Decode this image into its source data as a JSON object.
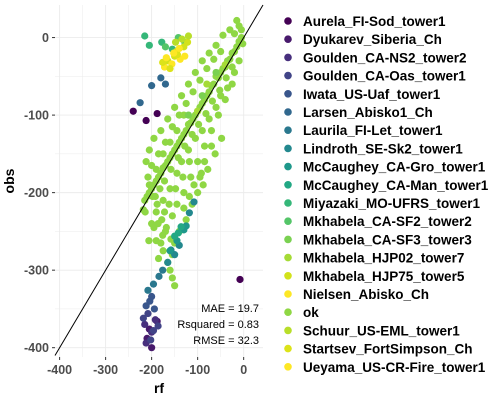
{
  "chart_data": {
    "type": "scatter",
    "xlabel": "rf",
    "ylabel": "obs",
    "xlim": [
      -410,
      42
    ],
    "ylim": [
      -412,
      42
    ],
    "x_ticks": [
      -400,
      -300,
      -200,
      -100,
      0
    ],
    "x_tick_labels": [
      "-400",
      "-300",
      "-200",
      "-100",
      "0"
    ],
    "y_ticks": [
      -400,
      -300,
      -200,
      -100,
      0
    ],
    "y_tick_labels": [
      "-400",
      "-300",
      "-200",
      "-100",
      "0"
    ],
    "grid": true,
    "reference_line": "1:1",
    "legend_position": "right",
    "annotations": [
      "MAE = 19.7",
      "Rsquared = 0.83",
      "RMSE = 32.3"
    ],
    "series": [
      {
        "name": "Aurela_FI-Sod_tower1",
        "color": "#440154",
        "points": [
          [
            -240,
            -95
          ],
          [
            -212,
            -107
          ],
          [
            -188,
            -98
          ],
          [
            -8,
            -312
          ]
        ]
      },
      {
        "name": "Dyukarev_Siberia_Ch",
        "color": "#481A6C",
        "points": [
          [
            -210,
            -388
          ],
          [
            -200,
            -400
          ],
          [
            -205,
            -376
          ],
          [
            -188,
            -366
          ]
        ]
      },
      {
        "name": "Goulden_CA-NS2_tower2",
        "color": "#472F7D",
        "points": [
          [
            -215,
            -370
          ],
          [
            -200,
            -380
          ],
          [
            -192,
            -364
          ],
          [
            -212,
            -394
          ]
        ]
      },
      {
        "name": "Goulden_CA-Oas_tower1",
        "color": "#414487",
        "points": [
          [
            -218,
            -362
          ],
          [
            -208,
            -356
          ],
          [
            -196,
            -378
          ],
          [
            -202,
            -390
          ],
          [
            -186,
            -372
          ]
        ]
      },
      {
        "name": "Iwata_US-Uaf_tower1",
        "color": "#39568C",
        "points": [
          [
            -212,
            -346
          ],
          [
            -204,
            -340
          ],
          [
            -194,
            -350
          ],
          [
            -200,
            -334
          ]
        ]
      },
      {
        "name": "Larsen_Abisko1_Ch",
        "color": "#31688E",
        "points": [
          [
            -225,
            -84
          ],
          [
            -200,
            -62
          ],
          [
            -180,
            -52
          ],
          [
            -170,
            -60
          ]
        ]
      },
      {
        "name": "Laurila_FI-Let_tower1",
        "color": "#2A788E",
        "points": [
          [
            -196,
            -318
          ],
          [
            -184,
            -308
          ],
          [
            -208,
            -326
          ],
          [
            -176,
            -300
          ]
        ]
      },
      {
        "name": "Lindroth_SE-Sk2_tower1",
        "color": "#23888E",
        "points": [
          [
            -165,
            -290
          ],
          [
            -150,
            -280
          ],
          [
            -140,
            -268
          ],
          [
            -158,
            -274
          ],
          [
            -108,
            -212
          ],
          [
            -118,
            -226
          ]
        ]
      },
      {
        "name": "McCaughey_CA-Gro_tower1",
        "color": "#1F988B",
        "points": [
          [
            -160,
            -275
          ],
          [
            -145,
            -262
          ],
          [
            -130,
            -248
          ],
          [
            -125,
            -243
          ]
        ]
      },
      {
        "name": "McCaughey_CA-Man_tower1",
        "color": "#22A884",
        "points": [
          [
            -150,
            -256
          ],
          [
            -136,
            -244
          ],
          [
            -142,
            -252
          ]
        ]
      },
      {
        "name": "Miyazaki_MO-UFRS_tower1",
        "color": "#35B779",
        "points": [
          [
            -215,
            2
          ],
          [
            -205,
            -10
          ],
          [
            -155,
            -15
          ],
          [
            -178,
            -6
          ]
        ]
      },
      {
        "name": "Mkhabela_CA-SF2_tower2",
        "color": "#54C568",
        "points": [
          [
            -142,
            0
          ],
          [
            -128,
            -6
          ],
          [
            -170,
            -12
          ]
        ]
      },
      {
        "name": "Mkhabela_CA-SF3_tower3",
        "color": "#7AD151",
        "points": [
          [
            -120,
            -100
          ],
          [
            -90,
            -75
          ],
          [
            -60,
            -45
          ]
        ]
      },
      {
        "name": "Mkhabela_HJP02_tower7",
        "color": "#A5DB36",
        "points": [
          [
            -100,
            -95
          ],
          [
            -80,
            -60
          ],
          [
            -40,
            -35
          ]
        ]
      },
      {
        "name": "Mkhabela_HJP75_tower5",
        "color": "#D2E21B",
        "points": [
          [
            -165,
            -30
          ],
          [
            -150,
            -24
          ],
          [
            -146,
            -18
          ],
          [
            -130,
            -12
          ],
          [
            -122,
            -6
          ]
        ]
      },
      {
        "name": "Nielsen_Abisko_Ch",
        "color": "#FDE725",
        "points": [
          [
            -172,
            -38
          ],
          [
            -156,
            -34
          ],
          [
            -138,
            -28
          ],
          [
            -128,
            -24
          ]
        ]
      },
      {
        "name": "ok",
        "color": "#8FD744",
        "points": [
          [
            -5,
            0
          ],
          [
            -10,
            -5
          ],
          [
            -15,
            -12
          ],
          [
            -20,
            -18
          ],
          [
            -25,
            -20
          ],
          [
            -30,
            -28
          ],
          [
            -35,
            -30
          ],
          [
            -40,
            -38
          ],
          [
            -45,
            -40
          ],
          [
            -50,
            -45
          ],
          [
            -55,
            -52
          ],
          [
            -60,
            -50
          ],
          [
            -65,
            -60
          ],
          [
            -70,
            -62
          ],
          [
            -75,
            -70
          ],
          [
            -80,
            -75
          ],
          [
            -85,
            -80
          ],
          [
            -90,
            -85
          ],
          [
            -95,
            -90
          ],
          [
            -100,
            -95
          ],
          [
            -105,
            -100
          ],
          [
            -110,
            -105
          ],
          [
            -115,
            -110
          ],
          [
            -120,
            -112
          ],
          [
            -125,
            -120
          ],
          [
            -130,
            -125
          ],
          [
            -135,
            -130
          ],
          [
            -140,
            -135
          ],
          [
            -145,
            -140
          ],
          [
            -150,
            -145
          ],
          [
            -155,
            -150
          ],
          [
            -160,
            -155
          ],
          [
            -165,
            -160
          ],
          [
            -170,
            -165
          ],
          [
            -175,
            -168
          ],
          [
            -180,
            -175
          ],
          [
            -185,
            -180
          ],
          [
            -190,
            -185
          ],
          [
            -195,
            -190
          ],
          [
            -200,
            -195
          ],
          [
            -205,
            -200
          ],
          [
            -210,
            -205
          ],
          [
            -215,
            -210
          ],
          [
            -218,
            -222
          ],
          [
            -200,
            -240
          ],
          [
            -190,
            -262
          ],
          [
            -175,
            -275
          ],
          [
            -165,
            -290
          ],
          [
            -160,
            -300
          ],
          [
            -155,
            -310
          ],
          [
            -150,
            -320
          ],
          [
            -20,
            5
          ],
          [
            -30,
            10
          ],
          [
            -45,
            3
          ],
          [
            -60,
            -10
          ],
          [
            -75,
            -20
          ],
          [
            -90,
            -30
          ],
          [
            -105,
            -45
          ],
          [
            -120,
            -60
          ],
          [
            -135,
            -75
          ],
          [
            -150,
            -90
          ],
          [
            -165,
            -105
          ],
          [
            -180,
            -120
          ],
          [
            -195,
            -130
          ],
          [
            -205,
            -145
          ],
          [
            -212,
            -160
          ],
          [
            -25,
            -60
          ],
          [
            -40,
            -80
          ],
          [
            -55,
            -100
          ],
          [
            -70,
            -120
          ],
          [
            -85,
            -140
          ],
          [
            -100,
            -160
          ],
          [
            -115,
            -180
          ],
          [
            -130,
            -200
          ],
          [
            -145,
            -215
          ],
          [
            -155,
            -230
          ],
          [
            -170,
            -250
          ],
          [
            -180,
            -265
          ],
          [
            -185,
            -285
          ],
          [
            -10,
            -30
          ],
          [
            -20,
            -45
          ],
          [
            -35,
            -65
          ],
          [
            -50,
            -75
          ],
          [
            -60,
            -90
          ],
          [
            -75,
            -105
          ],
          [
            -90,
            -120
          ],
          [
            -105,
            -130
          ],
          [
            -120,
            -145
          ],
          [
            -135,
            -160
          ],
          [
            -145,
            -175
          ],
          [
            -160,
            -195
          ],
          [
            -175,
            -210
          ],
          [
            -190,
            -225
          ],
          [
            -195,
            -245
          ],
          [
            -48,
            -130
          ],
          [
            -62,
            -150
          ],
          [
            -78,
            -170
          ],
          [
            -88,
            -190
          ],
          [
            -100,
            -200
          ],
          [
            -112,
            -215
          ],
          [
            -92,
            -175
          ],
          [
            -125,
            -235
          ],
          [
            -140,
            -250
          ],
          [
            -150,
            -265
          ],
          [
            -155,
            -280
          ],
          [
            -50,
            -18
          ],
          [
            -65,
            -28
          ],
          [
            -80,
            -40
          ],
          [
            -95,
            -55
          ],
          [
            -110,
            -70
          ],
          [
            -125,
            -85
          ],
          [
            -140,
            -100
          ],
          [
            -155,
            -115
          ],
          [
            -170,
            -135
          ],
          [
            -185,
            -150
          ],
          [
            -200,
            -165
          ],
          [
            -208,
            -180
          ],
          [
            -198,
            -205
          ],
          [
            -188,
            -215
          ],
          [
            -178,
            -235
          ],
          [
            -168,
            -245
          ],
          [
            -158,
            -260
          ],
          [
            -10,
            15
          ],
          [
            -15,
            22
          ],
          [
            -5,
            10
          ],
          [
            -2,
            -8
          ],
          [
            -25,
            -38
          ],
          [
            -38,
            -52
          ],
          [
            -52,
            -68
          ],
          [
            -68,
            -82
          ],
          [
            -82,
            -98
          ],
          [
            -98,
            -112
          ],
          [
            -112,
            -125
          ],
          [
            -128,
            -140
          ],
          [
            -142,
            -155
          ],
          [
            -158,
            -170
          ],
          [
            -172,
            -185
          ],
          [
            -182,
            -195
          ],
          [
            -192,
            -205
          ],
          [
            -186,
            -240
          ],
          [
            -176,
            -255
          ],
          [
            -70,
            -140
          ],
          [
            -85,
            -160
          ],
          [
            -95,
            -180
          ],
          [
            -108,
            -190
          ],
          [
            -118,
            -205
          ],
          [
            -130,
            -220
          ],
          [
            -118,
            -160
          ],
          [
            -132,
            -180
          ],
          [
            -148,
            -195
          ],
          [
            -162,
            -215
          ],
          [
            -172,
            -225
          ],
          [
            -130,
            -100
          ],
          [
            -145,
            -120
          ],
          [
            -160,
            -135
          ],
          [
            -175,
            -150
          ],
          [
            -190,
            -170
          ],
          [
            -205,
            -190
          ],
          [
            -214,
            -225
          ],
          [
            -206,
            -262
          ]
        ]
      },
      {
        "name": "Schuur_US-EML_tower1",
        "color": "#B8DE29",
        "points": [
          [
            -148,
            -6
          ],
          [
            -134,
            -2
          ],
          [
            -120,
            2
          ]
        ]
      },
      {
        "name": "Startsev_FortSimpson_Ch",
        "color": "#DCE319",
        "points": [
          [
            -176,
            -32
          ],
          [
            -160,
            -40
          ],
          [
            -144,
            -22
          ]
        ]
      },
      {
        "name": "Ueyama_US-CR-Fire_tower1",
        "color": "#FDE725",
        "points": [
          [
            -168,
            -26
          ],
          [
            -152,
            -20
          ],
          [
            -140,
            -14
          ]
        ]
      }
    ]
  }
}
